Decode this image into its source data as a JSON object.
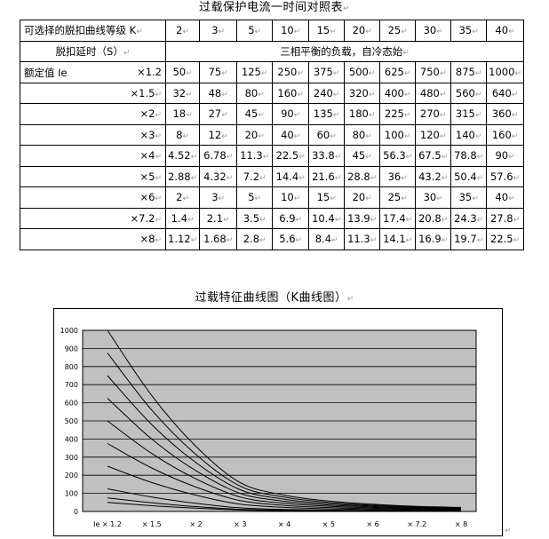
{
  "table_title": "过载保护电流一时间对照表",
  "table": {
    "header_label": "可选择的脱扣曲线等级 K",
    "k_values": [
      "2",
      "3",
      "5",
      "10",
      "15",
      "20",
      "25",
      "30",
      "35",
      "40"
    ],
    "delay_label": "脱扣延时（S）",
    "delay_note": "三相平衡的负载，自冷态始",
    "rated_label": "额定值 Ie",
    "rows": [
      {
        "ratio": "×1.2",
        "values": [
          "50",
          "75",
          "125",
          "250",
          "375",
          "500",
          "625",
          "750",
          "875",
          "1000"
        ]
      },
      {
        "ratio": "×1.5",
        "values": [
          "32",
          "48",
          "80",
          "160",
          "240",
          "320",
          "400",
          "480",
          "560",
          "640"
        ]
      },
      {
        "ratio": "×2",
        "values": [
          "18",
          "27",
          "45",
          "90",
          "135",
          "180",
          "225",
          "270",
          "315",
          "360"
        ]
      },
      {
        "ratio": "×3",
        "values": [
          "8",
          "12",
          "20",
          "40",
          "60",
          "80",
          "100",
          "120",
          "140",
          "160"
        ]
      },
      {
        "ratio": "×4",
        "values": [
          "4.52",
          "6.78",
          "11.3",
          "22.5",
          "33.8",
          "45",
          "56.3",
          "67.5",
          "78.8",
          "90"
        ]
      },
      {
        "ratio": "×5",
        "values": [
          "2.88",
          "4.32",
          "7.2",
          "14.4",
          "21.6",
          "28.8",
          "36",
          "43.2",
          "50.4",
          "57.6"
        ]
      },
      {
        "ratio": "×6",
        "values": [
          "2",
          "3",
          "5",
          "10",
          "15",
          "20",
          "25",
          "30",
          "35",
          "40"
        ]
      },
      {
        "ratio": "×7.2",
        "values": [
          "1.4",
          "2.1",
          "3.5",
          "6.9",
          "10.4",
          "13.9",
          "17.4",
          "20.8",
          "24.3",
          "27.8"
        ]
      },
      {
        "ratio": "×8",
        "values": [
          "1.12",
          "1.68",
          "2.8",
          "5.6",
          "8.4",
          "11.3",
          "14.1",
          "16.9",
          "19.7",
          "22.5"
        ]
      }
    ]
  },
  "chart_title": "过载特征曲线图（K曲线图）",
  "paragraph_mark": "↵",
  "colors": {
    "plot_bg": "#c0c0c0",
    "curve": "#000000",
    "grid": "#000000",
    "frame": "#000000"
  },
  "chart_data": {
    "type": "line",
    "title": "过载特征曲线图（K曲线图）",
    "categories": [
      "Ie × 1.2",
      "× 1.5",
      "× 2",
      "× 3",
      "× 4",
      "× 5",
      "× 6",
      "× 7.2",
      "× 8"
    ],
    "yticks": [
      0,
      100,
      200,
      300,
      400,
      500,
      600,
      700,
      800,
      900,
      1000
    ],
    "ylim": [
      0,
      1000
    ],
    "grid": true,
    "legend": "none",
    "series": [
      {
        "values": [
          50,
          32,
          18,
          8,
          4.52,
          2.88,
          2,
          1.4,
          1.12
        ]
      },
      {
        "values": [
          75,
          48,
          27,
          12,
          6.78,
          4.32,
          3,
          2.1,
          1.68
        ]
      },
      {
        "values": [
          125,
          80,
          45,
          20,
          11.3,
          7.2,
          5,
          3.5,
          2.8
        ]
      },
      {
        "values": [
          250,
          160,
          90,
          40,
          22.5,
          14.4,
          10,
          6.9,
          5.6
        ]
      },
      {
        "values": [
          375,
          240,
          135,
          60,
          33.8,
          21.6,
          15,
          10.4,
          8.4
        ]
      },
      {
        "values": [
          500,
          320,
          180,
          80,
          45,
          28.8,
          20,
          13.9,
          11.3
        ]
      },
      {
        "values": [
          625,
          400,
          225,
          100,
          56.3,
          36,
          25,
          17.4,
          14.1
        ]
      },
      {
        "values": [
          750,
          480,
          270,
          120,
          67.5,
          43.2,
          30,
          20.8,
          16.9
        ]
      },
      {
        "values": [
          875,
          560,
          315,
          140,
          78.8,
          50.4,
          35,
          24.3,
          19.7
        ]
      },
      {
        "values": [
          1000,
          640,
          360,
          160,
          90,
          57.6,
          40,
          27.8,
          22.5
        ]
      }
    ]
  }
}
